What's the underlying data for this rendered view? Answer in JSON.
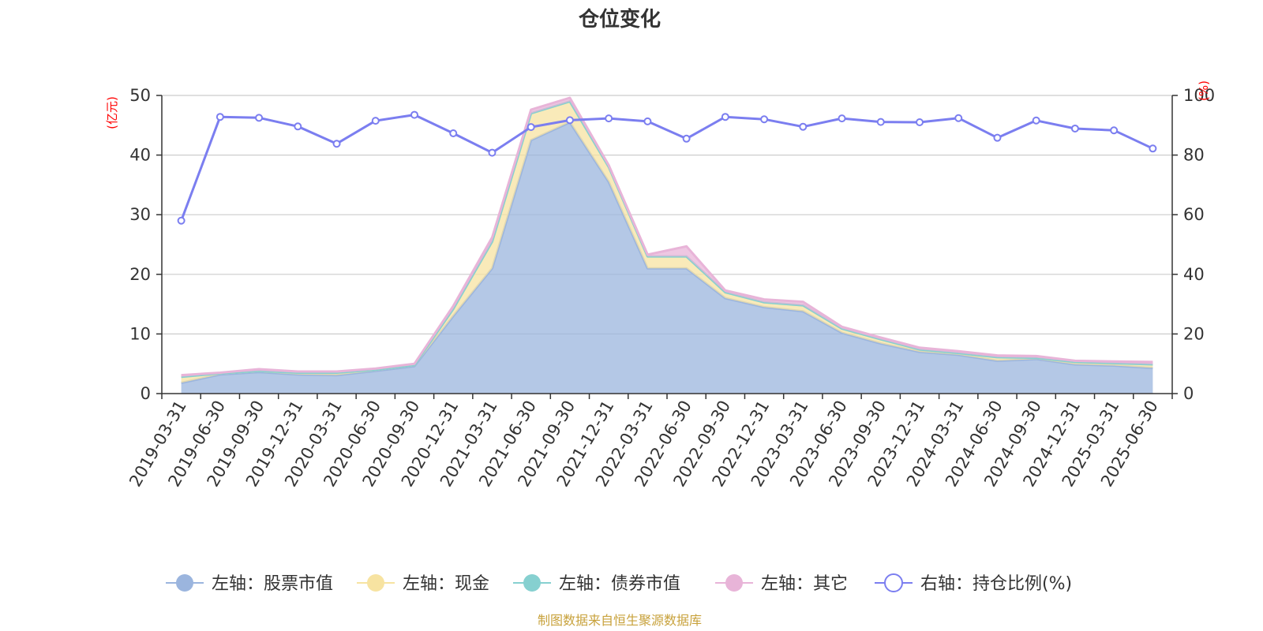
{
  "chart_data": {
    "type": "area",
    "title": "仓位变化",
    "left_axis_unit": "(亿元)",
    "right_axis_unit": "(%)",
    "ylim_left": [
      0,
      50
    ],
    "yticks_left": [
      0,
      10,
      20,
      30,
      40,
      50
    ],
    "ylim_right": [
      0,
      100
    ],
    "yticks_right": [
      0,
      20,
      40,
      60,
      80,
      100
    ],
    "grid": true,
    "stacked": true,
    "legend_position": "bottom",
    "categories": [
      "2019-03-31",
      "2019-06-30",
      "2019-09-30",
      "2019-12-31",
      "2020-03-31",
      "2020-06-30",
      "2020-09-30",
      "2020-12-31",
      "2021-03-31",
      "2021-06-30",
      "2021-09-30",
      "2021-12-31",
      "2022-03-31",
      "2022-06-30",
      "2022-09-30",
      "2022-12-31",
      "2023-03-31",
      "2023-06-30",
      "2023-09-30",
      "2023-12-31",
      "2024-03-31",
      "2024-06-30",
      "2024-09-30",
      "2024-12-31",
      "2025-03-31",
      "2025-06-30"
    ],
    "series": [
      {
        "name": "左轴：股票市值",
        "axis": "left",
        "color": "#9bb5de",
        "values": [
          1.8,
          3.2,
          3.6,
          3.2,
          3.1,
          3.8,
          4.6,
          13.0,
          21.0,
          42.5,
          45.5,
          35.5,
          21.0,
          21.0,
          16.0,
          14.5,
          13.8,
          10.2,
          8.4,
          7.0,
          6.5,
          5.5,
          5.8,
          4.9,
          4.7,
          4.3
        ]
      },
      {
        "name": "左轴：现金",
        "axis": "left",
        "color": "#f7e3a1",
        "values": [
          1.0,
          0.2,
          0.2,
          0.3,
          0.4,
          0.2,
          0.2,
          1.2,
          4.5,
          4.5,
          3.5,
          2.5,
          2.0,
          2.0,
          1.0,
          0.8,
          1.0,
          0.7,
          0.7,
          0.4,
          0.3,
          0.6,
          0.2,
          0.4,
          0.4,
          0.6
        ]
      },
      {
        "name": "左轴：债券市值",
        "axis": "left",
        "color": "#86d0d0",
        "values": [
          0,
          0,
          0,
          0,
          0,
          0,
          0,
          0,
          0,
          0,
          0,
          0,
          0,
          0,
          0,
          0,
          0,
          0,
          0,
          0,
          0,
          0,
          0,
          0,
          0,
          0
        ]
      },
      {
        "name": "左轴：其它",
        "axis": "left",
        "color": "#e8b4d8",
        "values": [
          0.3,
          0.1,
          0.3,
          0.2,
          0.2,
          0.2,
          0.2,
          0.5,
          0.7,
          0.6,
          0.6,
          0.3,
          0.3,
          1.7,
          0.3,
          0.5,
          0.6,
          0.3,
          0.3,
          0.3,
          0.3,
          0.3,
          0.3,
          0.2,
          0.3,
          0.4
        ]
      },
      {
        "name": "右轴：持仓比例(%)",
        "axis": "right",
        "color": "#7b7ef0",
        "values": [
          58.0,
          92.8,
          92.5,
          89.6,
          83.8,
          91.5,
          93.5,
          87.3,
          80.8,
          89.4,
          91.7,
          92.3,
          91.3,
          85.5,
          92.8,
          92.0,
          89.5,
          92.3,
          91.1,
          91.0,
          92.4,
          85.8,
          91.6,
          88.9,
          88.3,
          82.2
        ]
      }
    ]
  },
  "source_note": "制图数据来自恒生聚源数据库"
}
